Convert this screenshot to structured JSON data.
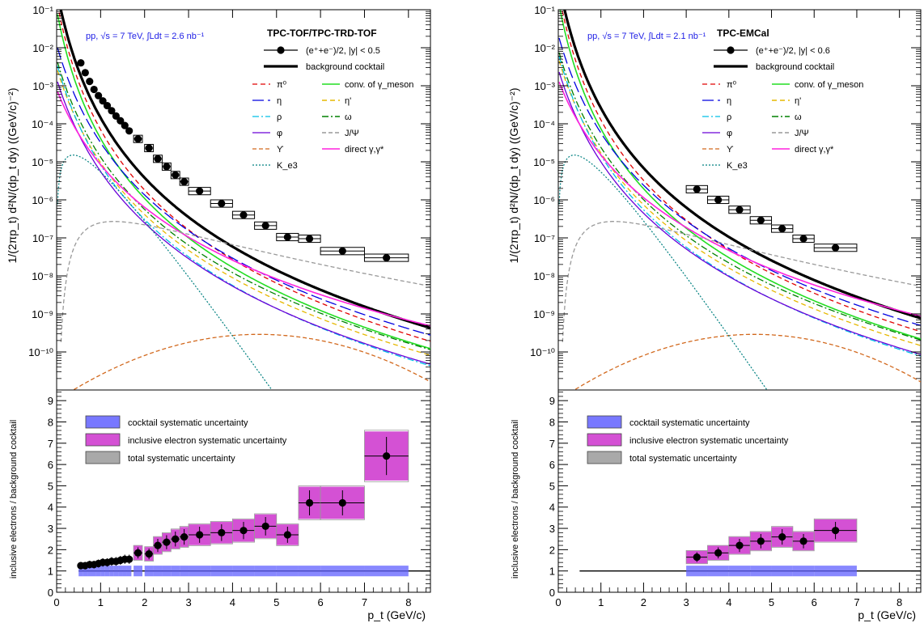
{
  "chart_data": [
    {
      "type": "line",
      "panel": "top-left",
      "header": "TPC-TOF/TPC-TRD-TOF",
      "system": "pp, √s = 7 TeV, ∫Ldt = 2.6 nb⁻¹",
      "ylabel": "1/(2πp_t) d²N/(dp_t dy) ((GeV/c)⁻²)",
      "xlim": [
        0,
        8.5
      ],
      "ylim": [
        1e-11,
        0.1
      ],
      "yscale": "log",
      "ytick_labels": [
        "10⁻¹⁰",
        "10⁻⁹",
        "10⁻⁸",
        "10⁻⁷",
        "10⁻⁶",
        "10⁻⁵",
        "10⁻⁴",
        "10⁻³",
        "10⁻²",
        "10⁻¹"
      ],
      "legend": {
        "data": "(e⁺+e⁻)/2, |y| < 0.5",
        "cocktail": "background cocktail",
        "left": [
          "π⁰",
          "η",
          "ρ",
          "φ",
          "ϒ",
          "K_e3"
        ],
        "right": [
          "conv. of γ_meson",
          "η'",
          "ω",
          "J/Ψ",
          "direct γ,γ*"
        ]
      },
      "data_points": {
        "x": [
          0.55,
          0.65,
          0.75,
          0.85,
          0.95,
          1.05,
          1.15,
          1.25,
          1.35,
          1.45,
          1.55,
          1.65,
          1.85,
          2.1,
          2.3,
          2.5,
          2.7,
          2.9,
          3.25,
          3.75,
          4.25,
          4.75,
          5.25,
          5.75,
          6.5,
          7.5
        ],
        "y": [
          0.004,
          0.0022,
          0.0013,
          0.0008,
          0.00055,
          0.0004,
          0.0003,
          0.00022,
          0.00016,
          0.00012,
          9e-05,
          6.5e-05,
          4e-05,
          2.3e-05,
          1.2e-05,
          7.5e-06,
          4.5e-06,
          3e-06,
          1.7e-06,
          8e-07,
          4e-07,
          2.1e-07,
          1.05e-07,
          9.5e-08,
          4.5e-08,
          3e-08
        ]
      }
    },
    {
      "type": "line",
      "panel": "top-right",
      "header": "TPC-EMCal",
      "system": "pp, √s = 7 TeV, ∫Ldt = 2.1 nb⁻¹",
      "ylabel": "1/(2πp_t) d²N/(dp_t dy) ((GeV/c)⁻²)",
      "xlim": [
        0,
        8.5
      ],
      "ylim": [
        1e-11,
        0.1
      ],
      "yscale": "log",
      "ytick_labels": [
        "10⁻¹⁰",
        "10⁻⁹",
        "10⁻⁸",
        "10⁻⁷",
        "10⁻⁶",
        "10⁻⁵",
        "10⁻⁴",
        "10⁻³",
        "10⁻²",
        "10⁻¹"
      ],
      "legend": {
        "data": "(e⁺+e⁻)/2, |y| < 0.6",
        "cocktail": "background cocktail",
        "left": [
          "π⁰",
          "η",
          "ρ",
          "φ",
          "ϒ",
          "K_e3"
        ],
        "right": [
          "conv. of γ_meson",
          "η'",
          "ω",
          "J/Ψ",
          "direct γ,γ*"
        ]
      },
      "data_points": {
        "x": [
          3.25,
          3.75,
          4.25,
          4.75,
          5.25,
          5.75,
          6.5
        ],
        "y": [
          1.9e-06,
          1e-06,
          5.5e-07,
          2.9e-07,
          1.75e-07,
          9.5e-08,
          5.5e-08
        ]
      }
    },
    {
      "type": "scatter",
      "panel": "bottom-left",
      "ylabel": "inclusive electrons / background cocktail",
      "xlabel": "p_t (GeV/c)",
      "xlim": [
        0,
        8.5
      ],
      "ylim": [
        0,
        9.5
      ],
      "xticks": [
        "0",
        "1",
        "2",
        "3",
        "4",
        "5",
        "6",
        "7",
        "8"
      ],
      "yticks": [
        "0",
        "1",
        "2",
        "3",
        "4",
        "5",
        "6",
        "7",
        "8",
        "9"
      ],
      "legend": [
        "cocktail systematic uncertainty",
        "inclusive electron systematic uncertainty",
        "total systematic uncertainty"
      ],
      "ratio": {
        "x": [
          0.55,
          0.65,
          0.75,
          0.85,
          0.95,
          1.05,
          1.15,
          1.25,
          1.35,
          1.45,
          1.55,
          1.65,
          1.85,
          2.1,
          2.3,
          2.5,
          2.7,
          2.9,
          3.25,
          3.75,
          4.25,
          4.75,
          5.25,
          5.75,
          6.5,
          7.5
        ],
        "y": [
          1.25,
          1.25,
          1.3,
          1.3,
          1.35,
          1.4,
          1.4,
          1.45,
          1.45,
          1.5,
          1.55,
          1.55,
          1.85,
          1.8,
          2.2,
          2.35,
          2.5,
          2.6,
          2.7,
          2.8,
          2.9,
          3.1,
          2.7,
          4.2,
          4.2,
          6.4
        ]
      }
    },
    {
      "type": "scatter",
      "panel": "bottom-right",
      "ylabel": "inclusive electrons / background cocktail",
      "xlabel": "p_t (GeV/c)",
      "xlim": [
        0,
        8.5
      ],
      "ylim": [
        0,
        9.5
      ],
      "xticks": [
        "0",
        "1",
        "2",
        "3",
        "4",
        "5",
        "6",
        "7",
        "8"
      ],
      "yticks": [
        "0",
        "1",
        "2",
        "3",
        "4",
        "5",
        "6",
        "7",
        "8",
        "9"
      ],
      "legend": [
        "cocktail systematic uncertainty",
        "inclusive electron systematic uncertainty",
        "total systematic uncertainty"
      ],
      "ratio": {
        "x": [
          3.25,
          3.75,
          4.25,
          4.75,
          5.25,
          5.75,
          6.5
        ],
        "y": [
          1.65,
          1.85,
          2.2,
          2.4,
          2.6,
          2.4,
          2.9
        ]
      }
    }
  ],
  "colors": {
    "cocktail": "#000000",
    "pi0": "#e00000",
    "eta": "#0000e0",
    "rho": "#00bfe6",
    "phi": "#6a00d8",
    "upsilon": "#d2691e",
    "ke3": "#008080",
    "conv": "#22dd22",
    "etaprime": "#e6b800",
    "omega": "#008000",
    "jpsi": "#999999",
    "direct": "#ff22dd",
    "cocktail_sys": "#6060ff",
    "electron_sys": "#cc33cc"
  }
}
